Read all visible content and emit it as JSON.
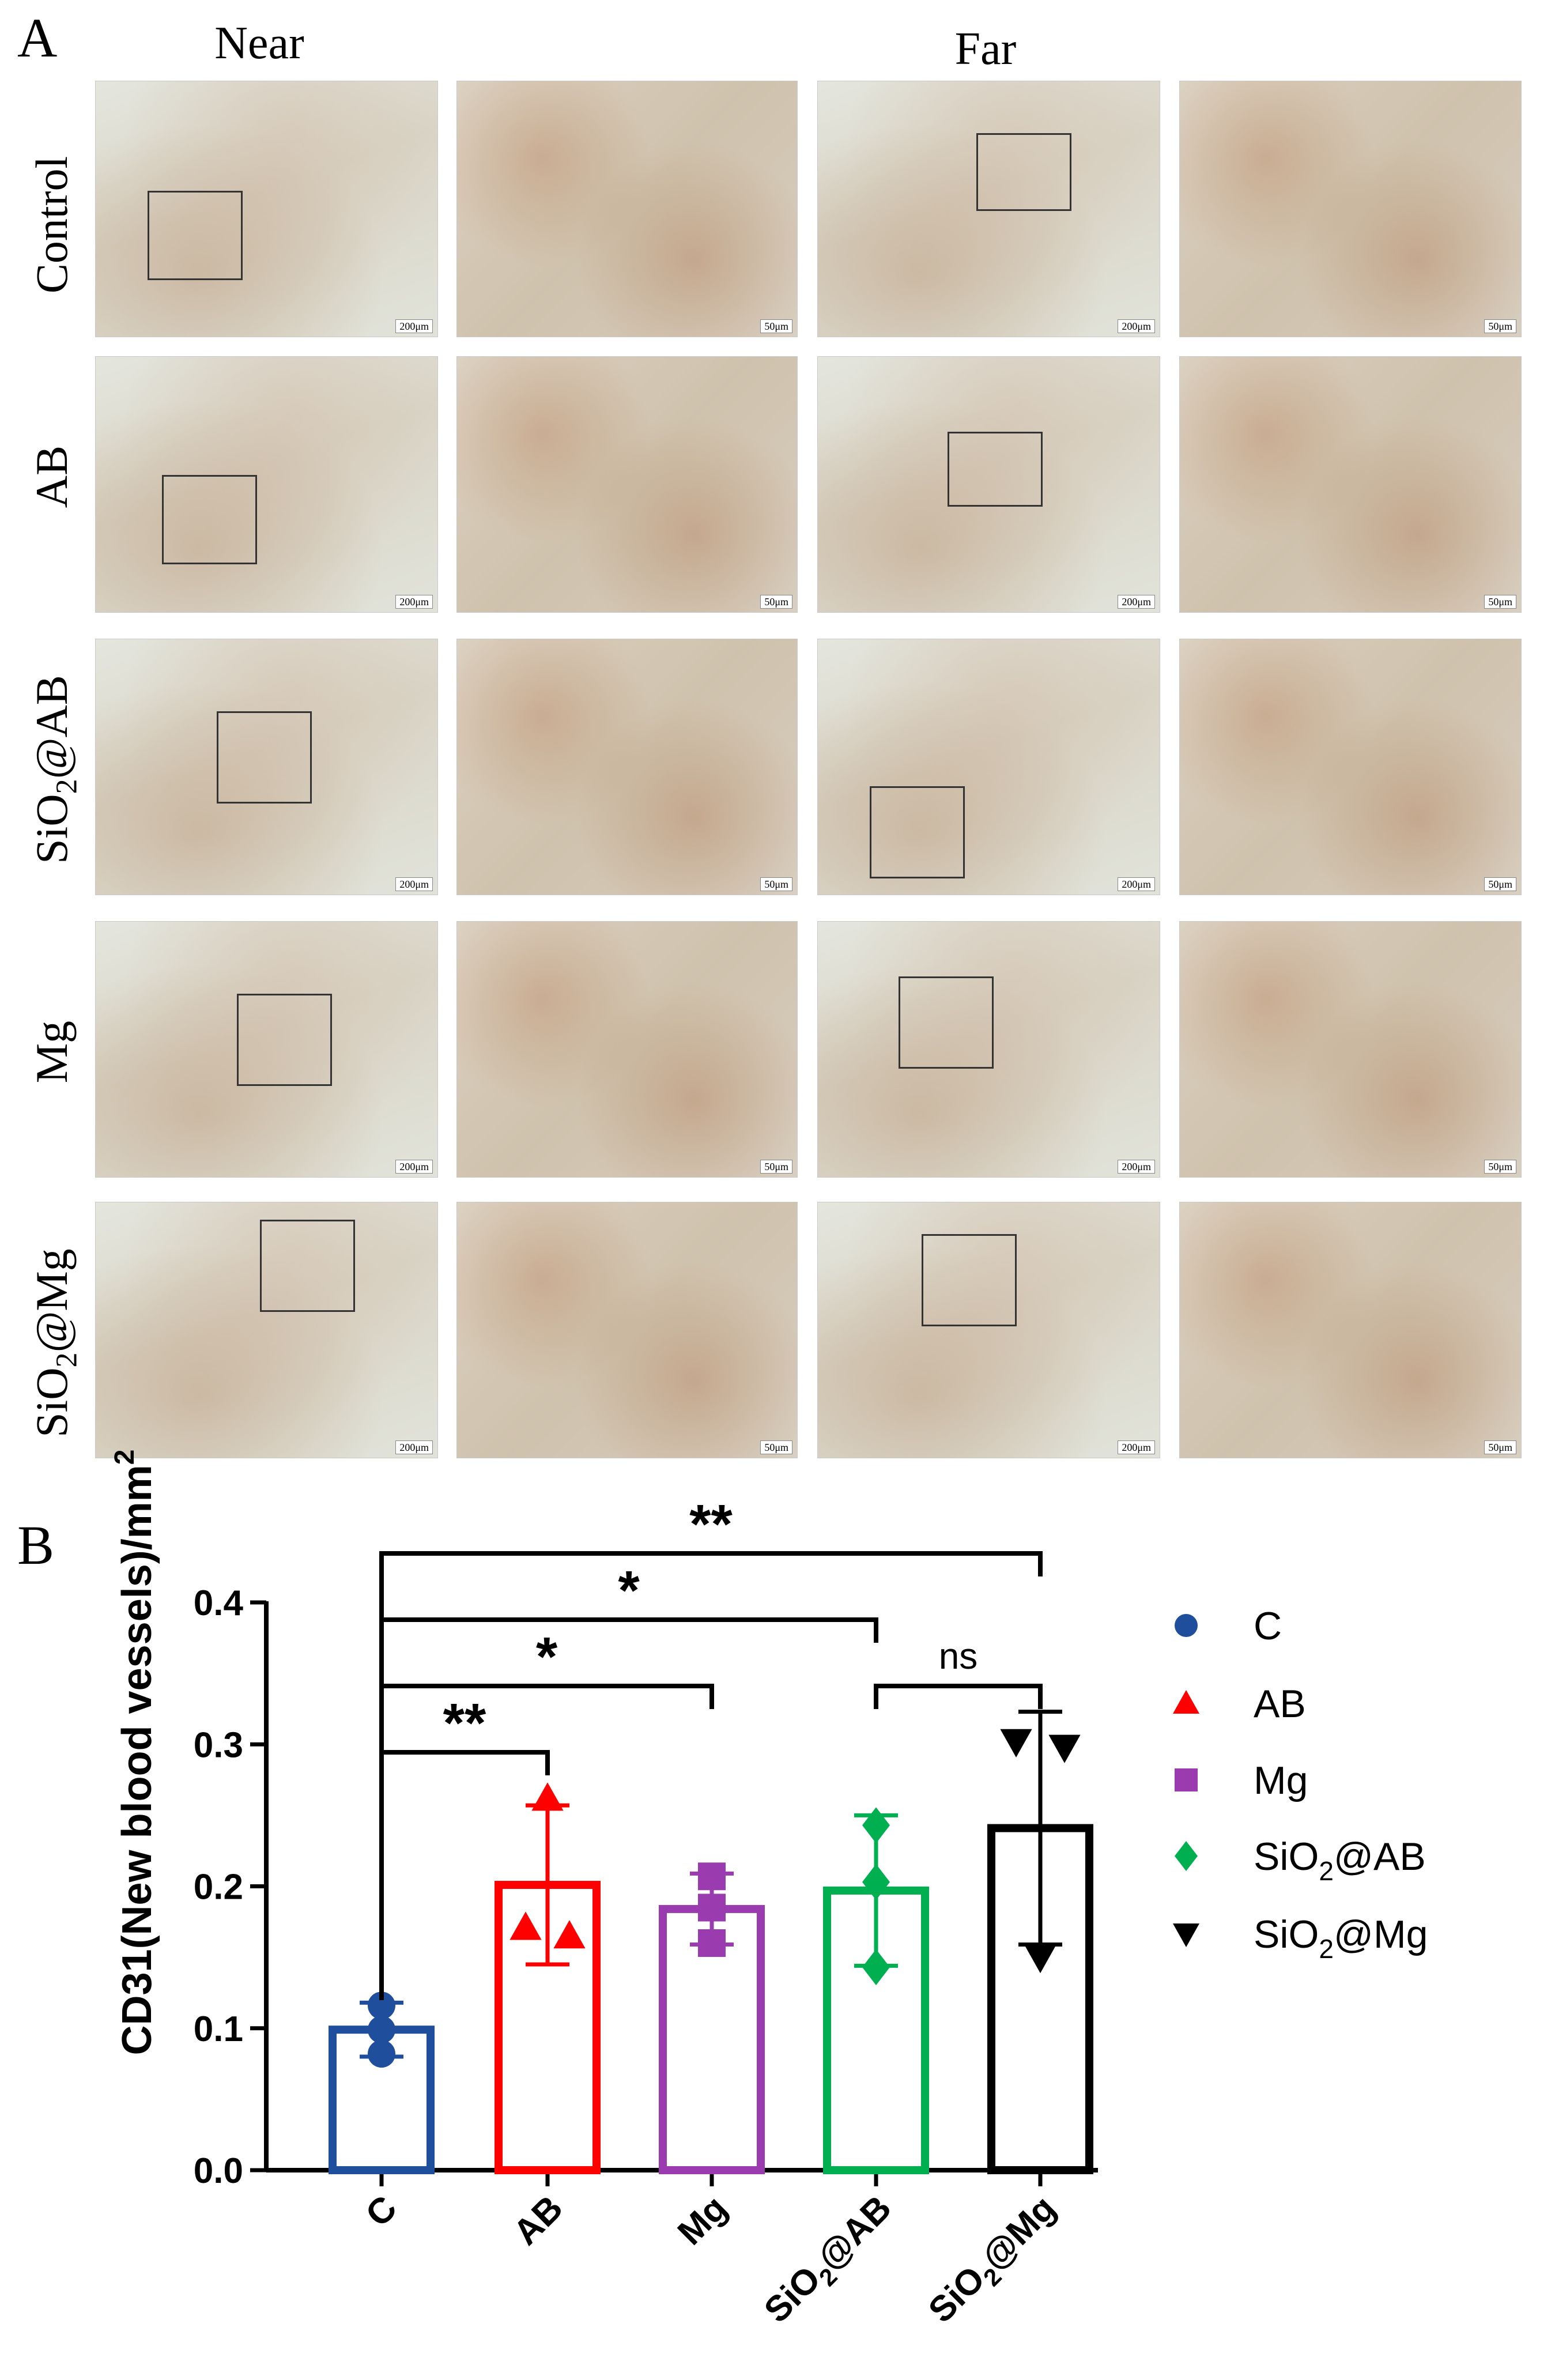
{
  "panel_labels": {
    "a": "A",
    "b": "B"
  },
  "panel_a": {
    "column_headers": [
      "Near",
      "Far"
    ],
    "rows": [
      {
        "label": "Control"
      },
      {
        "label": "AB"
      },
      {
        "label_html": "SiO<sub>2</sub>@AB",
        "label": "SiO2@AB"
      },
      {
        "label": "Mg"
      },
      {
        "label": "SiO2@Mg"
      }
    ],
    "scale_labels": {
      "overview": "200μm",
      "zoom": "50μm"
    }
  },
  "chart_data": {
    "type": "bar",
    "ylabel": "CD31(New blood vessels)/mm²",
    "ylim": [
      0,
      0.4
    ],
    "yticks": [
      "0.0",
      "0.1",
      "0.2",
      "0.3",
      "0.4"
    ],
    "categories": [
      "C",
      "AB",
      "Mg",
      "SiO2@AB",
      "SiO2@Mg"
    ],
    "values": [
      0.099,
      0.201,
      0.184,
      0.197,
      0.241
    ],
    "error": [
      0.019,
      0.056,
      0.025,
      0.053,
      0.082
    ],
    "points": [
      [
        0.116,
        0.099,
        0.082
      ],
      [
        0.262,
        0.171,
        0.165
      ],
      [
        0.207,
        0.185,
        0.16
      ],
      [
        0.243,
        0.203,
        0.143
      ],
      [
        0.302,
        0.298,
        0.15
      ]
    ],
    "colors": [
      "#1f4e9c",
      "#ff0000",
      "#9b3bb0",
      "#00b050",
      "#000000"
    ],
    "markers": [
      "circle",
      "triangle-up",
      "square",
      "diamond",
      "triangle-down"
    ],
    "legend": [
      "C",
      "AB",
      "Mg",
      "SiO2@AB",
      "SiO2@Mg"
    ],
    "legend_position": "right",
    "significance": [
      {
        "from": "C",
        "to": "AB",
        "label": "**"
      },
      {
        "from": "C",
        "to": "Mg",
        "label": "*"
      },
      {
        "from": "C",
        "to": "SiO2@AB",
        "label": "*"
      },
      {
        "from": "C",
        "to": "SiO2@Mg",
        "label": "**"
      },
      {
        "from": "SiO2@AB",
        "to": "SiO2@Mg",
        "label": "ns"
      }
    ]
  }
}
